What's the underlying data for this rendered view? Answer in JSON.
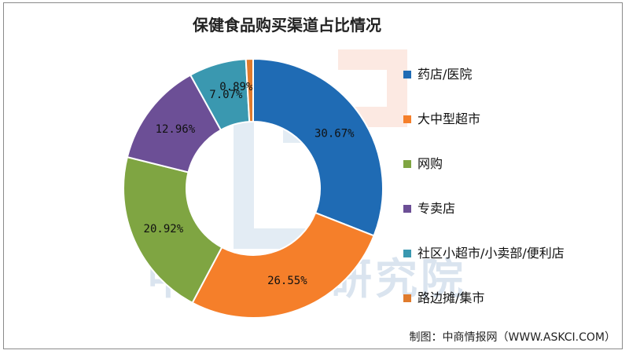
{
  "chart_data": {
    "type": "pie",
    "title": "保健食品购买渠道占比情况",
    "categories": [
      "药店/医院",
      "大中型超市",
      "网购",
      "专卖店",
      "社区小超市/小卖部/便利店",
      "路边摊/集市"
    ],
    "values": [
      30.67,
      26.55,
      20.92,
      12.96,
      7.07,
      0.89
    ],
    "labels": [
      "30.67%",
      "26.55%",
      "20.92%",
      "12.96%",
      "7.07%",
      "0.89%"
    ],
    "colors": [
      "#1f6bb4",
      "#f57f2a",
      "#7fa542",
      "#6c4f96",
      "#3a98b0",
      "#e07b2d"
    ],
    "donut": true,
    "legend_position": "right"
  },
  "source": "制图：中商情报网（WWW.ASKCI.COM）",
  "watermark": "中商产业研究院"
}
